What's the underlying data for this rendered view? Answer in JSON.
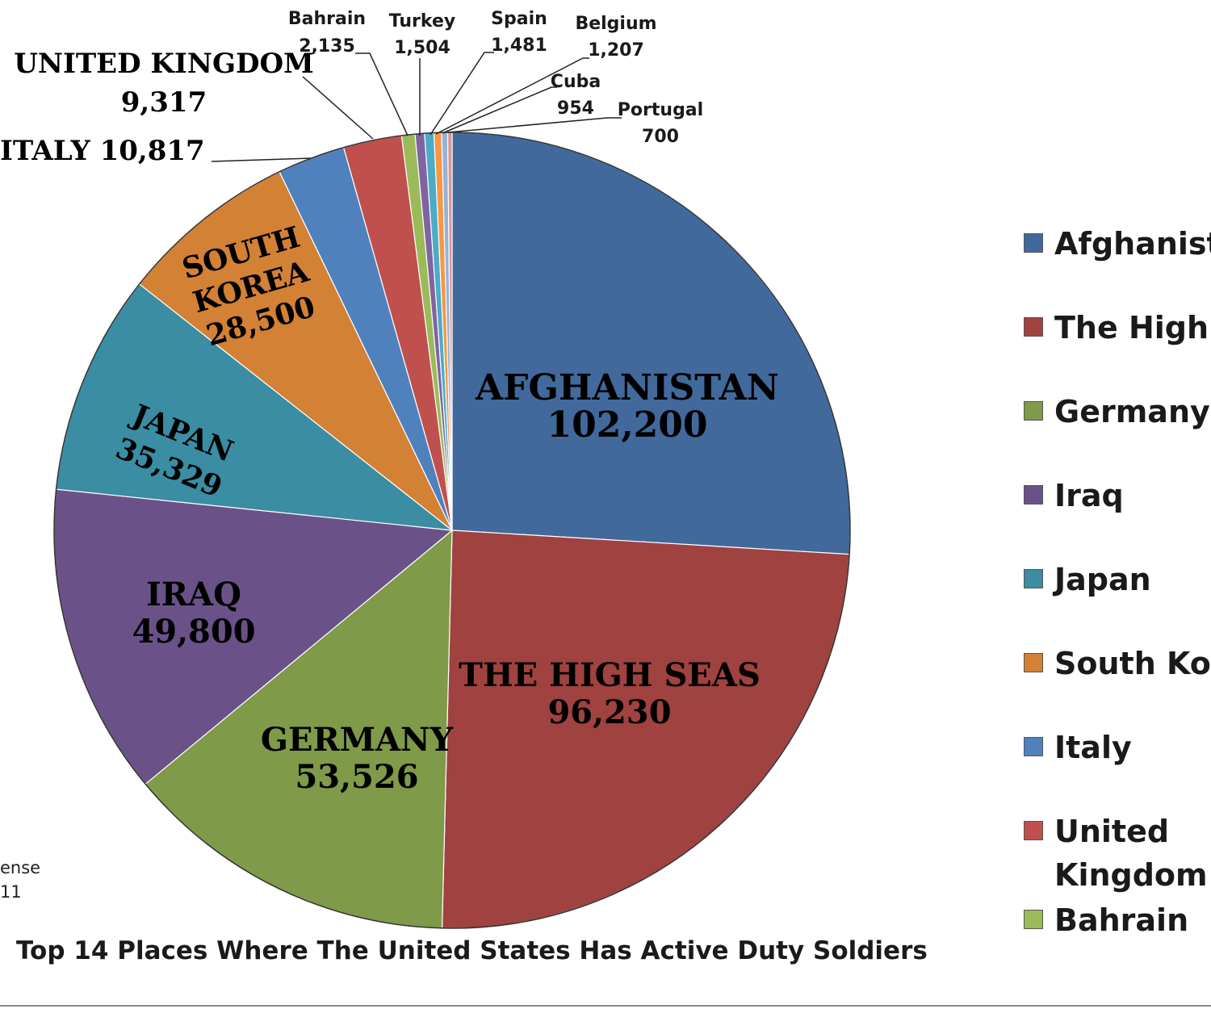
{
  "chart_data": {
    "type": "pie",
    "title": "Top 14 Places Where The United States Has Active Duty Soldiers",
    "slices": [
      {
        "name": "Afghanistan",
        "label": "AFGHANISTAN",
        "value": 102200,
        "value_text": "102,200",
        "color": "#41699C"
      },
      {
        "name": "The High Seas",
        "label": "THE HIGH SEAS",
        "value": 96230,
        "value_text": "96,230",
        "color": "#9F4240"
      },
      {
        "name": "Germany",
        "label": "GERMANY",
        "value": 53526,
        "value_text": "53,526",
        "color": "#7F9A48"
      },
      {
        "name": "Iraq",
        "label": "IRAQ",
        "value": 49800,
        "value_text": "49,800",
        "color": "#6A5289"
      },
      {
        "name": "Japan",
        "label": "JAPAN",
        "value": 35329,
        "value_text": "35,329",
        "color": "#3A8DA2"
      },
      {
        "name": "South Korea",
        "label": "SOUTH KOREA",
        "value": 28500,
        "value_text": "28,500",
        "color": "#D38135"
      },
      {
        "name": "Italy",
        "label": "ITALY",
        "value": 10817,
        "value_text": "10,817",
        "color": "#4F81BD"
      },
      {
        "name": "United Kingdom",
        "label": "UNITED KINGDOM",
        "value": 9317,
        "value_text": "9,317",
        "color": "#C0504D"
      },
      {
        "name": "Bahrain",
        "label": "Bahrain",
        "value": 2135,
        "value_text": "2,135",
        "color": "#9BBB59"
      },
      {
        "name": "Turkey",
        "label": "Turkey",
        "value": 1504,
        "value_text": "1,504",
        "color": "#8064A2"
      },
      {
        "name": "Spain",
        "label": "Spain",
        "value": 1481,
        "value_text": "1,481",
        "color": "#4BACC6"
      },
      {
        "name": "Belgium",
        "label": "Belgium",
        "value": 1207,
        "value_text": "1,207",
        "color": "#F79646"
      },
      {
        "name": "Cuba",
        "label": "Cuba",
        "value": 954,
        "value_text": "954",
        "color": "#95B3D7"
      },
      {
        "name": "Portugal",
        "label": "Portugal",
        "value": 700,
        "value_text": "700",
        "color": "#D99694"
      }
    ],
    "legend_position": "right",
    "legend": [
      "Afghanistan",
      "The High Seas",
      "Germany",
      "Iraq",
      "Japan",
      "South Korea",
      "Italy",
      "United Kingdom",
      "Bahrain"
    ]
  },
  "source_text": [
    "ense",
    "11"
  ]
}
